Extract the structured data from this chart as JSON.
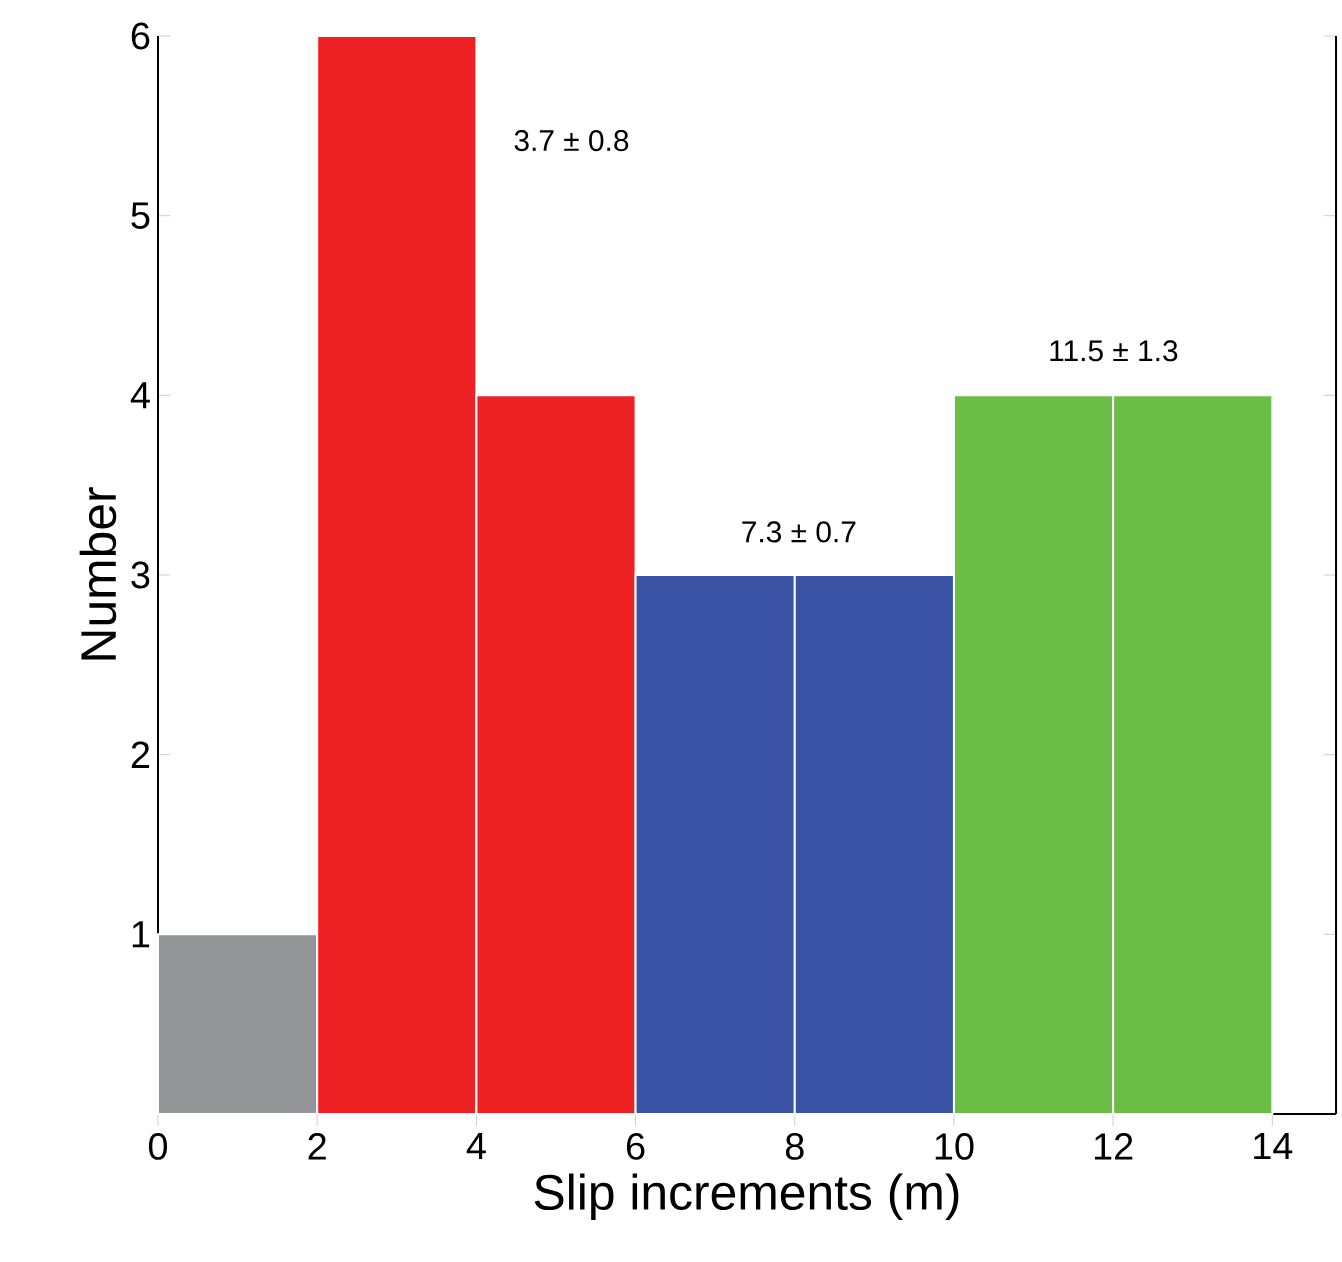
{
  "chart_data": {
    "type": "histogram",
    "xlabel": "Slip increments (m)",
    "ylabel": "Number",
    "bins": [
      0,
      2,
      4,
      6,
      8,
      10,
      12,
      14
    ],
    "values": [
      1,
      6,
      4,
      3,
      3,
      4,
      4
    ],
    "colors": [
      "#939598",
      "#ed2024",
      "#ed2024",
      "#3a53a4",
      "#3a53a4",
      "#6abd45",
      "#6abd45"
    ],
    "xlim": [
      0,
      14.8
    ],
    "ylim": [
      0,
      6
    ],
    "xticks": [
      0,
      2,
      4,
      6,
      8,
      10,
      12,
      14
    ],
    "yticks": [
      1,
      2,
      3,
      4,
      5,
      6
    ],
    "annotations": [
      "3.7 ± 0.8",
      "7.3 ± 0.7",
      "11.5 ± 1.3"
    ]
  }
}
